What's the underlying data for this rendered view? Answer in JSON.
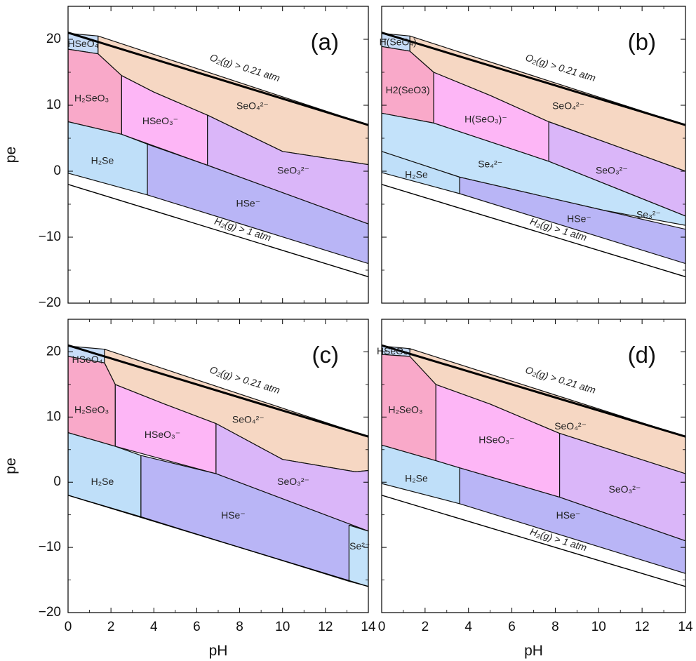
{
  "colors": {
    "H2SeO3": "#f9a9c9",
    "HSeO3-": "#fdb6f6",
    "SeO4": "#f6d7c3",
    "SeO3": "#dab6f9",
    "H2Se": "#bfdff9",
    "HSe-": "#b9b5f6",
    "HSeO4": "#c7dcf7",
    "Se4": "#c3e2fa",
    "Se2-": "#c3e2fa"
  },
  "chart_data": [
    {
      "panel": "(a)",
      "type": "area",
      "xlabel": "",
      "ylabel": "pe",
      "xlim": [
        0,
        14
      ],
      "ylim": [
        -20,
        25
      ],
      "xticks": [
        "",
        "",
        "",
        "",
        "",
        "",
        "",
        ""
      ],
      "yticks": [
        "−20",
        "−10",
        "0",
        "10",
        "20"
      ],
      "gas_lines": [
        "O₂(g) > 0.21 atm",
        "H₂(g) > 1 atm"
      ],
      "regions": [
        {
          "label": "HSeO₄",
          "color_key": "HSeO4",
          "polygon": [
            [
              0,
              20.9
            ],
            [
              1.4,
              20.5
            ],
            [
              1.4,
              17.8
            ],
            [
              0,
              18.5
            ]
          ]
        },
        {
          "label": "H₂SeO₃",
          "color_key": "H2SeO3",
          "polygon": [
            [
              0,
              18.5
            ],
            [
              1.4,
              17.8
            ],
            [
              2.5,
              14.5
            ],
            [
              2.5,
              5.6
            ],
            [
              0,
              7.5
            ]
          ]
        },
        {
          "label": "HSeO₃⁻",
          "color_key": "HSeO3-",
          "polygon": [
            [
              2.5,
              14.5
            ],
            [
              4,
              12
            ],
            [
              6.5,
              8.5
            ],
            [
              6.5,
              0.9
            ],
            [
              2.5,
              5.6
            ]
          ]
        },
        {
          "label": "SeO₄²⁻",
          "color_key": "SeO4",
          "polygon": [
            [
              1.4,
              20.5
            ],
            [
              14,
              7
            ],
            [
              14,
              1
            ],
            [
              10,
              3
            ],
            [
              6.5,
              8.5
            ],
            [
              4,
              12
            ],
            [
              2.5,
              14.5
            ],
            [
              1.4,
              17.8
            ]
          ]
        },
        {
          "label": "SeO₃²⁻",
          "color_key": "SeO3",
          "polygon": [
            [
              6.5,
              8.5
            ],
            [
              10,
              3
            ],
            [
              14,
              1
            ],
            [
              14,
              -8
            ],
            [
              6.5,
              0.9
            ]
          ]
        },
        {
          "label": "H₂Se",
          "color_key": "H2Se",
          "polygon": [
            [
              0,
              7.5
            ],
            [
              2.5,
              5.6
            ],
            [
              3.7,
              4.1
            ],
            [
              3.7,
              -3.6
            ],
            [
              0,
              -0.3
            ]
          ]
        },
        {
          "label": "HSe⁻",
          "color_key": "HSe-",
          "polygon": [
            [
              3.7,
              4.1
            ],
            [
              6.5,
              0.9
            ],
            [
              14,
              -8
            ],
            [
              14,
              -14
            ],
            [
              3.7,
              -3.6
            ]
          ]
        }
      ],
      "label_points": [
        {
          "text": "HSeO₄",
          "x": 0.7,
          "y": 19.2
        },
        {
          "text": "H₂SeO₃",
          "x": 1.1,
          "y": 11
        },
        {
          "text": "HSeO₃⁻",
          "x": 4.3,
          "y": 7.5
        },
        {
          "text": "SeO₄²⁻",
          "x": 8.6,
          "y": 9.8
        },
        {
          "text": "SeO₃²⁻",
          "x": 10.5,
          "y": 0
        },
        {
          "text": "H₂Se",
          "x": 1.6,
          "y": 1.5
        },
        {
          "text": "HSe⁻",
          "x": 8.4,
          "y": -5
        }
      ],
      "o2_label": {
        "x": 8.2,
        "y": 15.2
      },
      "h2_label": {
        "x": 8.1,
        "y": -9.3
      }
    },
    {
      "panel": "(b)",
      "type": "area",
      "xlabel": "",
      "ylabel": "",
      "xlim": [
        0,
        14
      ],
      "ylim": [
        -20,
        25
      ],
      "xticks": [
        "",
        "",
        "",
        "",
        "",
        "",
        "",
        ""
      ],
      "yticks": [
        "",
        "",
        "",
        "",
        ""
      ],
      "gas_lines": [
        "O₂(g) > 0.21 atm",
        "H₂(g) > 1 atm"
      ],
      "regions": [
        {
          "label": "H(SeO₄)",
          "color_key": "HSeO4",
          "polygon": [
            [
              0,
              20.9
            ],
            [
              1.3,
              20.5
            ],
            [
              1.3,
              18.2
            ],
            [
              0,
              18.9
            ]
          ]
        },
        {
          "label": "H2(SeO3)",
          "color_key": "H2SeO3",
          "polygon": [
            [
              0,
              18.9
            ],
            [
              1.3,
              18.2
            ],
            [
              2.4,
              15
            ],
            [
              2.4,
              7.3
            ],
            [
              0,
              8.8
            ]
          ]
        },
        {
          "label": "H(SeO₃)⁻",
          "color_key": "HSeO3-",
          "polygon": [
            [
              2.4,
              15
            ],
            [
              5,
              11.5
            ],
            [
              7.7,
              7.5
            ],
            [
              7.7,
              1.5
            ],
            [
              2.4,
              7.3
            ]
          ]
        },
        {
          "label": "SeO₄²⁻",
          "color_key": "SeO4",
          "polygon": [
            [
              1.3,
              20.5
            ],
            [
              14,
              7
            ],
            [
              14,
              0
            ],
            [
              7.7,
              7.5
            ],
            [
              5,
              11.5
            ],
            [
              2.4,
              15
            ],
            [
              1.3,
              18.2
            ]
          ]
        },
        {
          "label": "SeO₃²⁻",
          "color_key": "SeO3",
          "polygon": [
            [
              7.7,
              7.5
            ],
            [
              14,
              0
            ],
            [
              14,
              -6.8
            ],
            [
              7.7,
              1.5
            ]
          ]
        },
        {
          "label": "Se₄²⁻",
          "color_key": "Se4",
          "polygon": [
            [
              0,
              8.8
            ],
            [
              2.4,
              7.3
            ],
            [
              7.7,
              1.5
            ],
            [
              14,
              -6.8
            ],
            [
              14,
              -8.2
            ],
            [
              10.2,
              -5.9
            ],
            [
              3.6,
              -0.9
            ],
            [
              0,
              3
            ]
          ]
        },
        {
          "label": "H₂Se",
          "color_key": "H2Se",
          "polygon": [
            [
              0,
              3
            ],
            [
              3.6,
              -0.9
            ],
            [
              3.6,
              -3.4
            ],
            [
              0,
              -0.2
            ]
          ]
        },
        {
          "label": "HSe⁻",
          "color_key": "HSe-",
          "polygon": [
            [
              3.6,
              -0.9
            ],
            [
              10.2,
              -5.9
            ],
            [
              14,
              -8.8
            ],
            [
              14,
              -14
            ],
            [
              3.6,
              -3.4
            ]
          ]
        }
      ],
      "label_points": [
        {
          "text": "H(SeO₄)",
          "x": 0.75,
          "y": 19.5
        },
        {
          "text": "H2(SeO3)",
          "x": 1.2,
          "y": 12.2
        },
        {
          "text": "H(SeO₃)⁻",
          "x": 4.8,
          "y": 7.8
        },
        {
          "text": "SeO₄²⁻",
          "x": 8.6,
          "y": 9.8
        },
        {
          "text": "SeO₃²⁻",
          "x": 10.6,
          "y": 0
        },
        {
          "text": "Se₄²⁻",
          "x": 5,
          "y": 1
        },
        {
          "text": "H₂Se",
          "x": 1.6,
          "y": -0.6
        },
        {
          "text": "HSe⁻",
          "x": 9.1,
          "y": -7.3
        },
        {
          "text": "Se₃²⁻",
          "x": 12.3,
          "y": -6.7
        }
      ],
      "o2_label": {
        "x": 8.2,
        "y": 15.2
      },
      "h2_label": {
        "x": 8.1,
        "y": -9.3
      }
    },
    {
      "panel": "(c)",
      "type": "area",
      "xlabel": "pH",
      "ylabel": "pe",
      "xlim": [
        0,
        14
      ],
      "ylim": [
        -20,
        25
      ],
      "xticks": [
        "0",
        "2",
        "4",
        "6",
        "8",
        "10",
        "12",
        "14"
      ],
      "yticks": [
        "−20",
        "−10",
        "0",
        "10",
        "20"
      ],
      "gas_lines": [
        "O₂(g) > 0.21 atm"
      ],
      "regions": [
        {
          "label": "HSeO₄",
          "color_key": "HSeO4",
          "polygon": [
            [
              0,
              20.9
            ],
            [
              1.7,
              20.4
            ],
            [
              1.7,
              18.3
            ],
            [
              0,
              19.3
            ]
          ]
        },
        {
          "label": "H₂SeO₃",
          "color_key": "H2SeO3",
          "polygon": [
            [
              0,
              19.3
            ],
            [
              1.7,
              18.3
            ],
            [
              2.2,
              15
            ],
            [
              2.2,
              5.5
            ],
            [
              0,
              7.6
            ]
          ]
        },
        {
          "label": "HSeO₃⁻",
          "color_key": "HSeO3-",
          "polygon": [
            [
              2.2,
              15
            ],
            [
              4.5,
              12
            ],
            [
              6.9,
              9
            ],
            [
              6.9,
              1.3
            ],
            [
              2.2,
              5.5
            ]
          ]
        },
        {
          "label": "SeO₄²⁻",
          "color_key": "SeO4",
          "polygon": [
            [
              1.7,
              20.4
            ],
            [
              14,
              7
            ],
            [
              14,
              1.8
            ],
            [
              13.4,
              1.6
            ],
            [
              10,
              3.5
            ],
            [
              6.9,
              9
            ],
            [
              4.5,
              12
            ],
            [
              2.2,
              15
            ],
            [
              1.7,
              18.3
            ]
          ]
        },
        {
          "label": "SeO₃²⁻",
          "color_key": "SeO3",
          "polygon": [
            [
              6.9,
              9
            ],
            [
              10,
              3.5
            ],
            [
              13.4,
              1.6
            ],
            [
              14,
              1.8
            ],
            [
              14,
              -7.5
            ],
            [
              6.9,
              1.3
            ]
          ]
        },
        {
          "label": "H₂Se",
          "color_key": "H2Se",
          "polygon": [
            [
              0,
              7.6
            ],
            [
              2.2,
              5.5
            ],
            [
              3.4,
              4.1
            ],
            [
              3.4,
              -5.3
            ],
            [
              0,
              -2
            ]
          ]
        },
        {
          "label": "HSe⁻",
          "color_key": "HSe-",
          "polygon": [
            [
              3.4,
              4.1
            ],
            [
              6.9,
              1.3
            ],
            [
              14,
              -7.5
            ],
            [
              13.1,
              -6.6
            ],
            [
              13.1,
              -15.2
            ],
            [
              3.4,
              -5.3
            ]
          ]
        },
        {
          "label": "Se²⁻",
          "color_key": "Se2-",
          "polygon": [
            [
              13.1,
              -6.6
            ],
            [
              14,
              -7.5
            ],
            [
              14,
              -16
            ],
            [
              13.1,
              -15.2
            ]
          ]
        }
      ],
      "label_points": [
        {
          "text": "HSeO₄",
          "x": 0.9,
          "y": 18.7
        },
        {
          "text": "H₂SeO₃",
          "x": 1.1,
          "y": 11
        },
        {
          "text": "HSeO₃⁻",
          "x": 4.4,
          "y": 7.2
        },
        {
          "text": "SeO₄²⁻",
          "x": 8.4,
          "y": 9.5
        },
        {
          "text": "SeO₃²⁻",
          "x": 10.5,
          "y": 0
        },
        {
          "text": "H₂Se",
          "x": 1.6,
          "y": 0
        },
        {
          "text": "HSe⁻",
          "x": 7.7,
          "y": -5.2
        },
        {
          "text": "Se²⁻",
          "x": 13.6,
          "y": -9.9
        }
      ],
      "o2_label": {
        "x": 8.2,
        "y": 15.2
      }
    },
    {
      "panel": "(d)",
      "type": "area",
      "xlabel": "pH",
      "ylabel": "",
      "xlim": [
        0,
        14
      ],
      "ylim": [
        -20,
        25
      ],
      "xticks": [
        "0",
        "2",
        "4",
        "6",
        "8",
        "10",
        "12",
        "14"
      ],
      "yticks": [
        "",
        "",
        "",
        "",
        ""
      ],
      "gas_lines": [
        "O₂(g) > 0.21 atm",
        "H₂(g) > 1 atm"
      ],
      "regions": [
        {
          "label": "HSeO₄⁻",
          "color_key": "HSeO4",
          "polygon": [
            [
              0,
              20.9
            ],
            [
              1.3,
              20.5
            ],
            [
              1.3,
              19.3
            ],
            [
              0,
              19.6
            ]
          ]
        },
        {
          "label": "H₂SeO₃",
          "color_key": "H2SeO3",
          "polygon": [
            [
              0,
              19.6
            ],
            [
              1.3,
              19.3
            ],
            [
              2.5,
              15
            ],
            [
              2.5,
              3.3
            ],
            [
              0,
              5.7
            ]
          ]
        },
        {
          "label": "HSeO₃⁻",
          "color_key": "HSeO3-",
          "polygon": [
            [
              2.5,
              15
            ],
            [
              5,
              12
            ],
            [
              8.2,
              7.5
            ],
            [
              8.2,
              -2.3
            ],
            [
              3.6,
              2.2
            ],
            [
              2.5,
              3.3
            ]
          ]
        },
        {
          "label": "SeO₄²⁻",
          "color_key": "SeO4",
          "polygon": [
            [
              1.3,
              20.5
            ],
            [
              14,
              7
            ],
            [
              14,
              1.3
            ],
            [
              8.2,
              7.5
            ],
            [
              5,
              12
            ],
            [
              2.5,
              15
            ],
            [
              1.3,
              19.3
            ]
          ]
        },
        {
          "label": "SeO₃²⁻",
          "color_key": "SeO3",
          "polygon": [
            [
              8.2,
              7.5
            ],
            [
              14,
              1.3
            ],
            [
              14,
              -9
            ],
            [
              8.2,
              -2.3
            ]
          ]
        },
        {
          "label": "H₂Se",
          "color_key": "H2Se",
          "polygon": [
            [
              0,
              5.7
            ],
            [
              2.5,
              3.3
            ],
            [
              3.6,
              2.2
            ],
            [
              3.6,
              -3.3
            ],
            [
              0,
              -0.2
            ]
          ]
        },
        {
          "label": "HSe⁻",
          "color_key": "HSe-",
          "polygon": [
            [
              3.6,
              2.2
            ],
            [
              8.2,
              -2.3
            ],
            [
              14,
              -9
            ],
            [
              14,
              -14
            ],
            [
              3.6,
              -3.3
            ]
          ]
        }
      ],
      "label_points": [
        {
          "text": "HSeO₄⁻",
          "x": 0.6,
          "y": 20
        },
        {
          "text": "H₂SeO₃",
          "x": 1.1,
          "y": 11
        },
        {
          "text": "HSeO₃⁻",
          "x": 5.3,
          "y": 6.4
        },
        {
          "text": "SeO₄²⁻",
          "x": 8.7,
          "y": 8.5
        },
        {
          "text": "SeO₃²⁻",
          "x": 11.2,
          "y": -1.2
        },
        {
          "text": "H₂Se",
          "x": 1.6,
          "y": 0.5
        },
        {
          "text": "HSe⁻",
          "x": 8.6,
          "y": -5.2
        }
      ],
      "o2_label": {
        "x": 8.2,
        "y": 15.2
      },
      "h2_label": {
        "x": 8.1,
        "y": -9.3
      }
    }
  ]
}
